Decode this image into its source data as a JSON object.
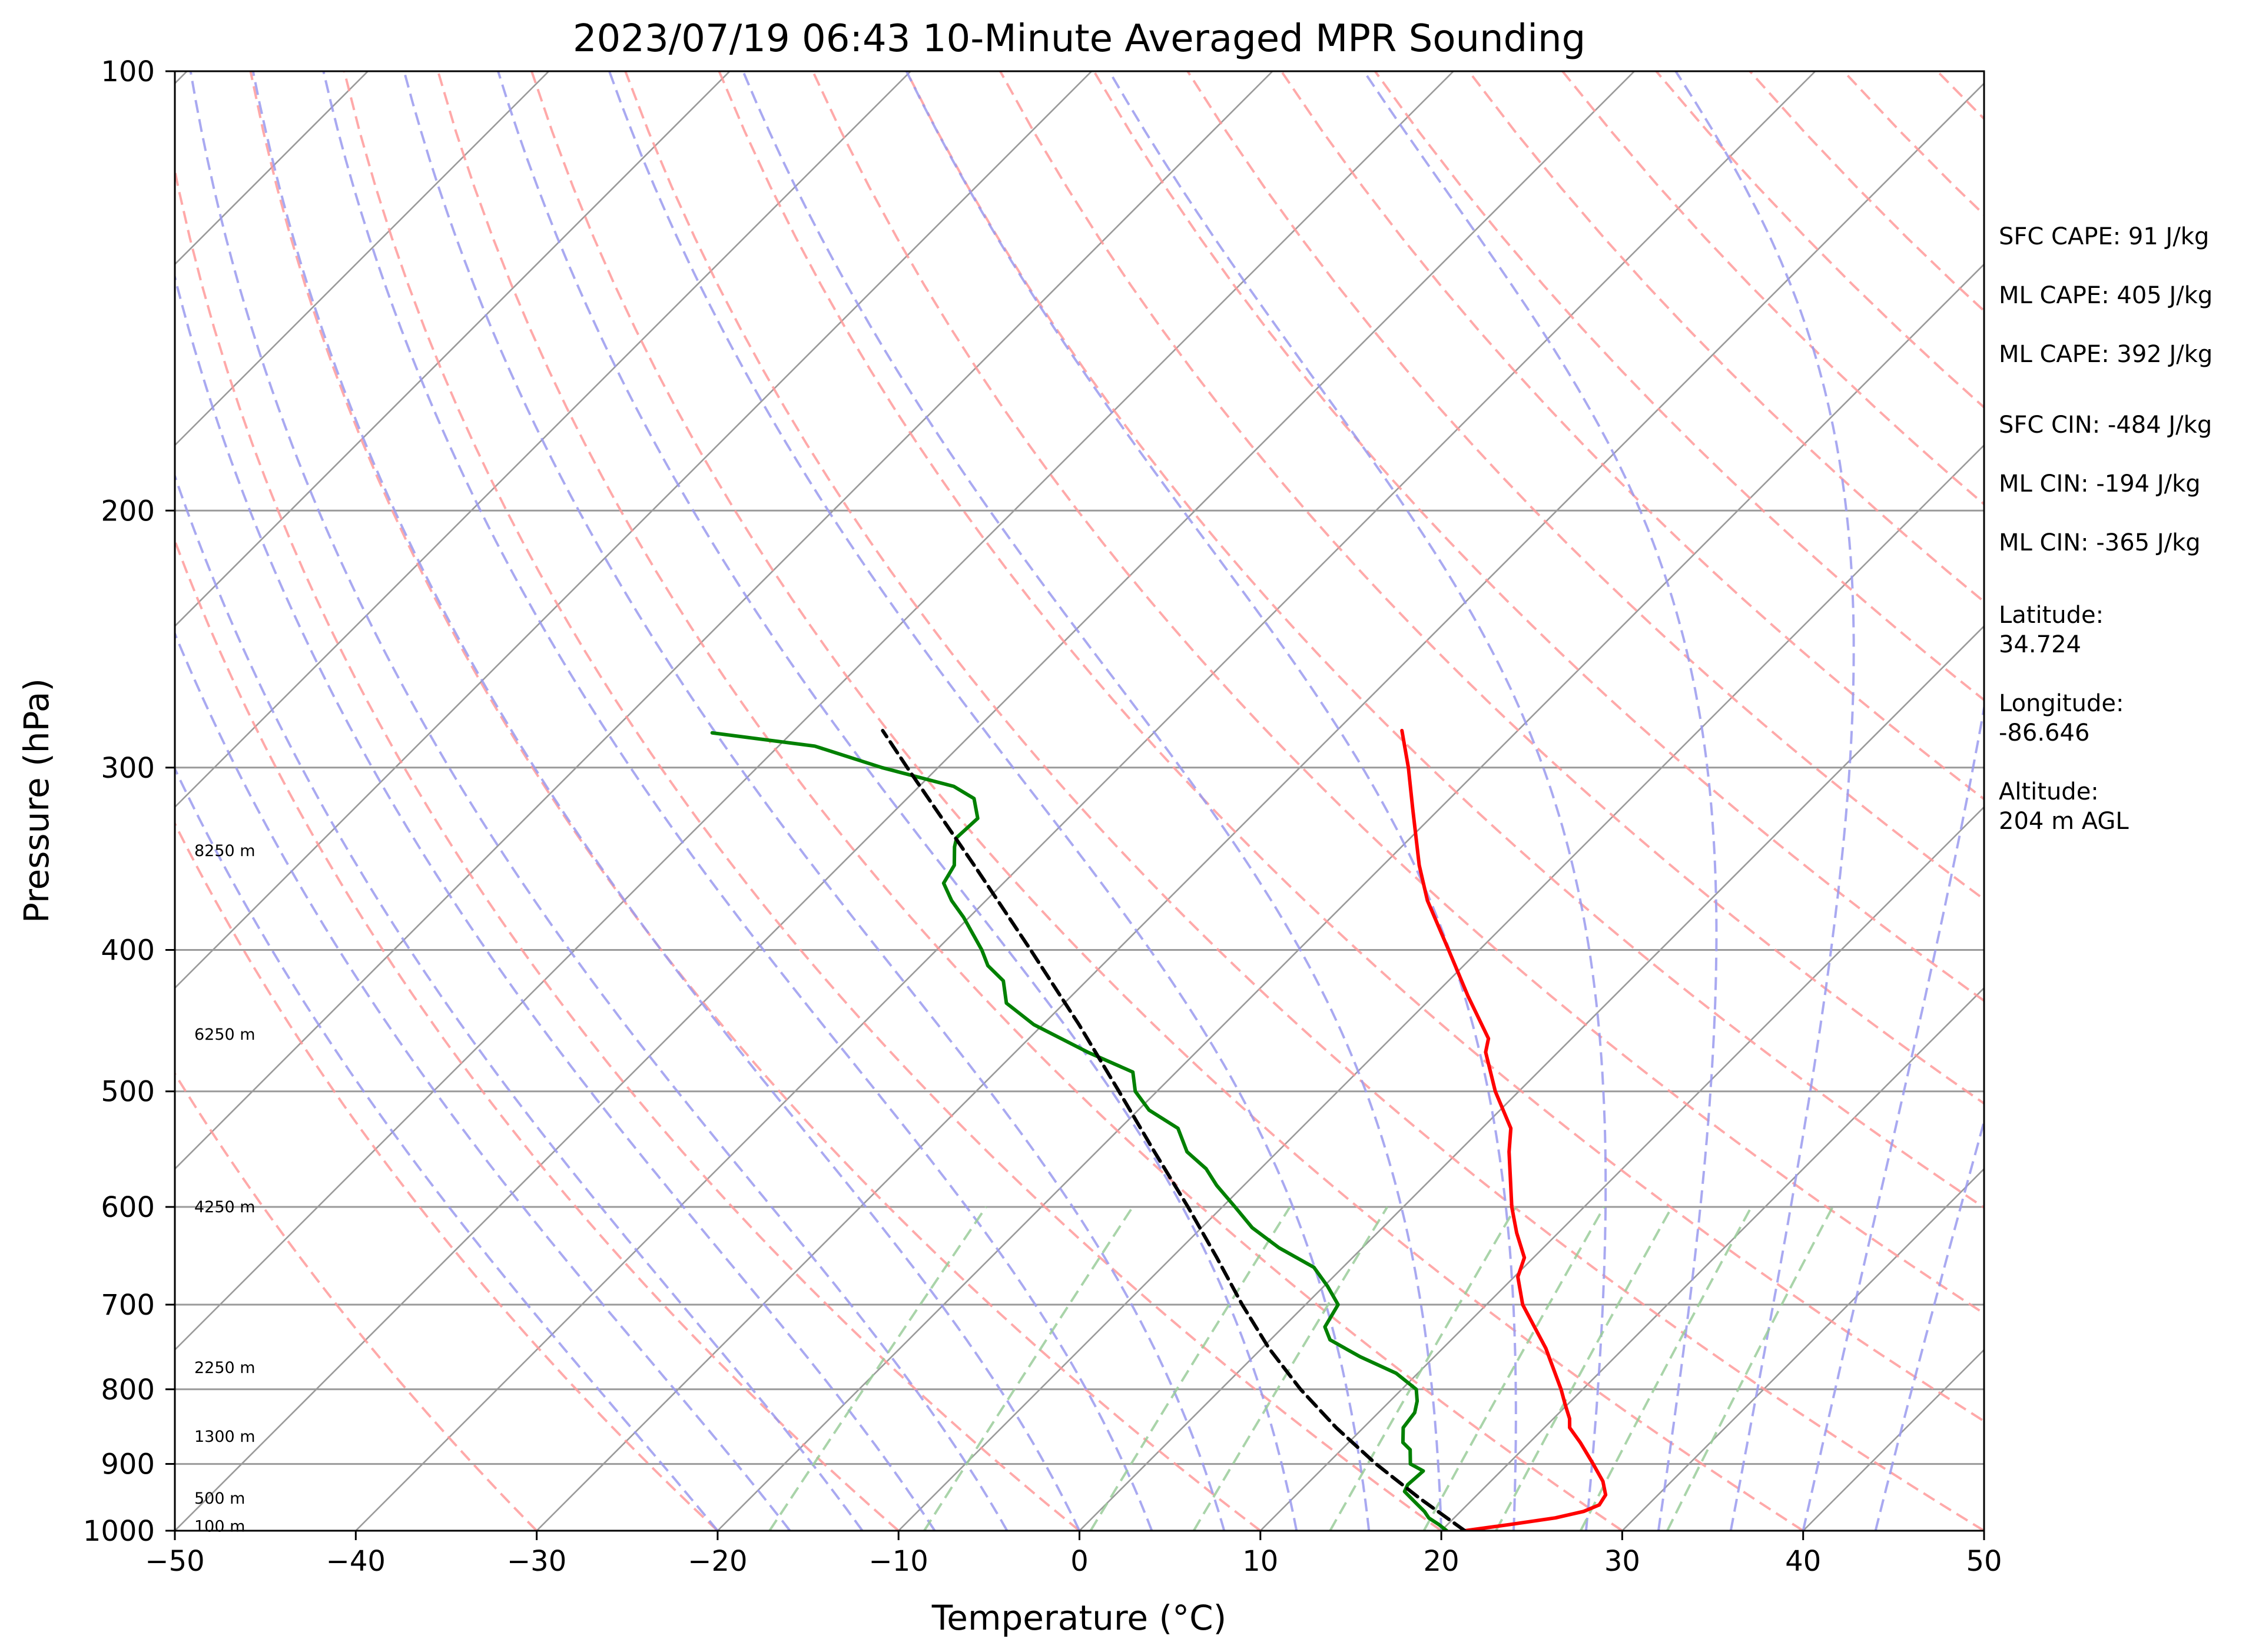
{
  "chart_data": {
    "type": "line",
    "title": "2023/07/19 06:43 10-Minute Averaged MPR Sounding",
    "xlabel": "Temperature (°C)",
    "ylabel": "Pressure (hPa)",
    "xlim": [
      -50,
      50
    ],
    "ylim": [
      1000,
      100
    ],
    "y_scale": "log",
    "skew": "temperature lines skewed 45° to the right",
    "grid": true,
    "x_ticks": [
      -50,
      -40,
      -30,
      -20,
      -10,
      0,
      10,
      20,
      30,
      40,
      50
    ],
    "x_tick_labels": [
      "−50",
      "−40",
      "−30",
      "−20",
      "−10",
      "0",
      "10",
      "20",
      "30",
      "40",
      "50"
    ],
    "y_ticks": [
      1000,
      900,
      800,
      700,
      600,
      500,
      400,
      300,
      200,
      100
    ],
    "y_tick_labels": [
      "1000",
      "900",
      "800",
      "700",
      "600",
      "500",
      "400",
      "300",
      "200",
      "100"
    ],
    "reference_lines": {
      "isotherms_every_c": 10,
      "dry_adiabats_color": "#ff9a9a",
      "moist_adiabats_color": "#9a9aee",
      "mixing_ratio_color": "#9acd9a",
      "isotherm_color": "#9a9a9a",
      "isobar_color": "#9a9a9a"
    },
    "series": [
      {
        "role": "temperature",
        "color": "#ff0000",
        "points": [
          {
            "p": 1000,
            "t": 21.3
          },
          {
            "p": 990,
            "t": 23.5
          },
          {
            "p": 980,
            "t": 25.6
          },
          {
            "p": 970,
            "t": 26.8
          },
          {
            "p": 960,
            "t": 27.3
          },
          {
            "p": 945,
            "t": 27.1
          },
          {
            "p": 925,
            "t": 26.2
          },
          {
            "p": 900,
            "t": 24.7
          },
          {
            "p": 870,
            "t": 22.8
          },
          {
            "p": 850,
            "t": 21.4
          },
          {
            "p": 838,
            "t": 20.9
          },
          {
            "p": 820,
            "t": 19.9
          },
          {
            "p": 800,
            "t": 18.8
          },
          {
            "p": 750,
            "t": 15.7
          },
          {
            "p": 700,
            "t": 12.0
          },
          {
            "p": 670,
            "t": 10.2
          },
          {
            "p": 650,
            "t": 9.5
          },
          {
            "p": 625,
            "t": 7.7
          },
          {
            "p": 600,
            "t": 6.0
          },
          {
            "p": 550,
            "t": 2.8
          },
          {
            "p": 530,
            "t": 1.6
          },
          {
            "p": 500,
            "t": -1.3
          },
          {
            "p": 470,
            "t": -4.0
          },
          {
            "p": 460,
            "t": -4.6
          },
          {
            "p": 430,
            "t": -8.1
          },
          {
            "p": 400,
            "t": -11.7
          },
          {
            "p": 370,
            "t": -15.6
          },
          {
            "p": 350,
            "t": -18.0
          },
          {
            "p": 320,
            "t": -21.5
          },
          {
            "p": 300,
            "t": -24.0
          },
          {
            "p": 283,
            "t": -26.4
          }
        ]
      },
      {
        "role": "dewpoint",
        "color": "#008000",
        "points": [
          {
            "p": 1000,
            "t": 20.3
          },
          {
            "p": 990,
            "t": 19.5
          },
          {
            "p": 980,
            "t": 18.6
          },
          {
            "p": 970,
            "t": 18.0
          },
          {
            "p": 955,
            "t": 16.9
          },
          {
            "p": 940,
            "t": 15.8
          },
          {
            "p": 930,
            "t": 15.6
          },
          {
            "p": 910,
            "t": 15.7
          },
          {
            "p": 900,
            "t": 14.6
          },
          {
            "p": 880,
            "t": 13.8
          },
          {
            "p": 870,
            "t": 13.0
          },
          {
            "p": 850,
            "t": 12.2
          },
          {
            "p": 830,
            "t": 12.0
          },
          {
            "p": 815,
            "t": 11.5
          },
          {
            "p": 800,
            "t": 10.8
          },
          {
            "p": 780,
            "t": 8.8
          },
          {
            "p": 760,
            "t": 5.9
          },
          {
            "p": 740,
            "t": 3.3
          },
          {
            "p": 725,
            "t": 2.3
          },
          {
            "p": 700,
            "t": 1.8
          },
          {
            "p": 680,
            "t": 0.2
          },
          {
            "p": 660,
            "t": -1.6
          },
          {
            "p": 640,
            "t": -4.6
          },
          {
            "p": 620,
            "t": -7.2
          },
          {
            "p": 600,
            "t": -9.3
          },
          {
            "p": 580,
            "t": -11.5
          },
          {
            "p": 565,
            "t": -13.0
          },
          {
            "p": 550,
            "t": -15.0
          },
          {
            "p": 530,
            "t": -16.8
          },
          {
            "p": 515,
            "t": -19.4
          },
          {
            "p": 500,
            "t": -21.2
          },
          {
            "p": 485,
            "t": -22.4
          },
          {
            "p": 470,
            "t": -26.0
          },
          {
            "p": 450,
            "t": -30.5
          },
          {
            "p": 435,
            "t": -33.2
          },
          {
            "p": 420,
            "t": -34.6
          },
          {
            "p": 410,
            "t": -36.3
          },
          {
            "p": 400,
            "t": -37.5
          },
          {
            "p": 380,
            "t": -40.3
          },
          {
            "p": 370,
            "t": -41.9
          },
          {
            "p": 360,
            "t": -43.3
          },
          {
            "p": 350,
            "t": -43.7
          },
          {
            "p": 340,
            "t": -44.7
          },
          {
            "p": 335,
            "t": -45.1
          },
          {
            "p": 325,
            "t": -45.0
          },
          {
            "p": 315,
            "t": -46.3
          },
          {
            "p": 309,
            "t": -48.1
          },
          {
            "p": 300,
            "t": -53.1
          },
          {
            "p": 290,
            "t": -58.0
          },
          {
            "p": 284,
            "t": -64.4
          }
        ]
      },
      {
        "role": "parcel",
        "color": "#000000",
        "dashed": true,
        "points": [
          {
            "p": 1000,
            "t": 21.3
          },
          {
            "p": 950,
            "t": 17.0
          },
          {
            "p": 900,
            "t": 12.7
          },
          {
            "p": 850,
            "t": 8.5
          },
          {
            "p": 800,
            "t": 4.4
          },
          {
            "p": 750,
            "t": 0.4
          },
          {
            "p": 700,
            "t": -3.5
          },
          {
            "p": 650,
            "t": -7.5
          },
          {
            "p": 600,
            "t": -11.9
          },
          {
            "p": 550,
            "t": -16.8
          },
          {
            "p": 500,
            "t": -22.1
          },
          {
            "p": 450,
            "t": -28.0
          },
          {
            "p": 400,
            "t": -34.8
          },
          {
            "p": 350,
            "t": -42.6
          },
          {
            "p": 300,
            "t": -51.7
          },
          {
            "p": 283,
            "t": -55.1
          }
        ]
      }
    ],
    "height_labels": [
      {
        "text": "100 m",
        "p": 993
      },
      {
        "text": "500 m",
        "p": 950
      },
      {
        "text": "1300 m",
        "p": 862
      },
      {
        "text": "2250 m",
        "p": 773
      },
      {
        "text": "4250 m",
        "p": 600
      },
      {
        "text": "6250 m",
        "p": 457
      },
      {
        "text": "8250 m",
        "p": 342
      }
    ]
  },
  "info_panel": {
    "sfc_cape": "SFC CAPE: 91 J/kg",
    "ml_cape_1": "ML CAPE: 405 J/kg",
    "ml_cape_2": "ML CAPE: 392 J/kg",
    "sfc_cin": "SFC CIN: -484 J/kg",
    "ml_cin_1": "ML CIN: -194 J/kg",
    "ml_cin_2": "ML CIN: -365 J/kg",
    "latitude_label": "Latitude:",
    "latitude_value": "34.724",
    "longitude_label": "Longitude:",
    "longitude_value": "-86.646",
    "altitude_label": "Altitude:",
    "altitude_value": "204 m AGL"
  }
}
